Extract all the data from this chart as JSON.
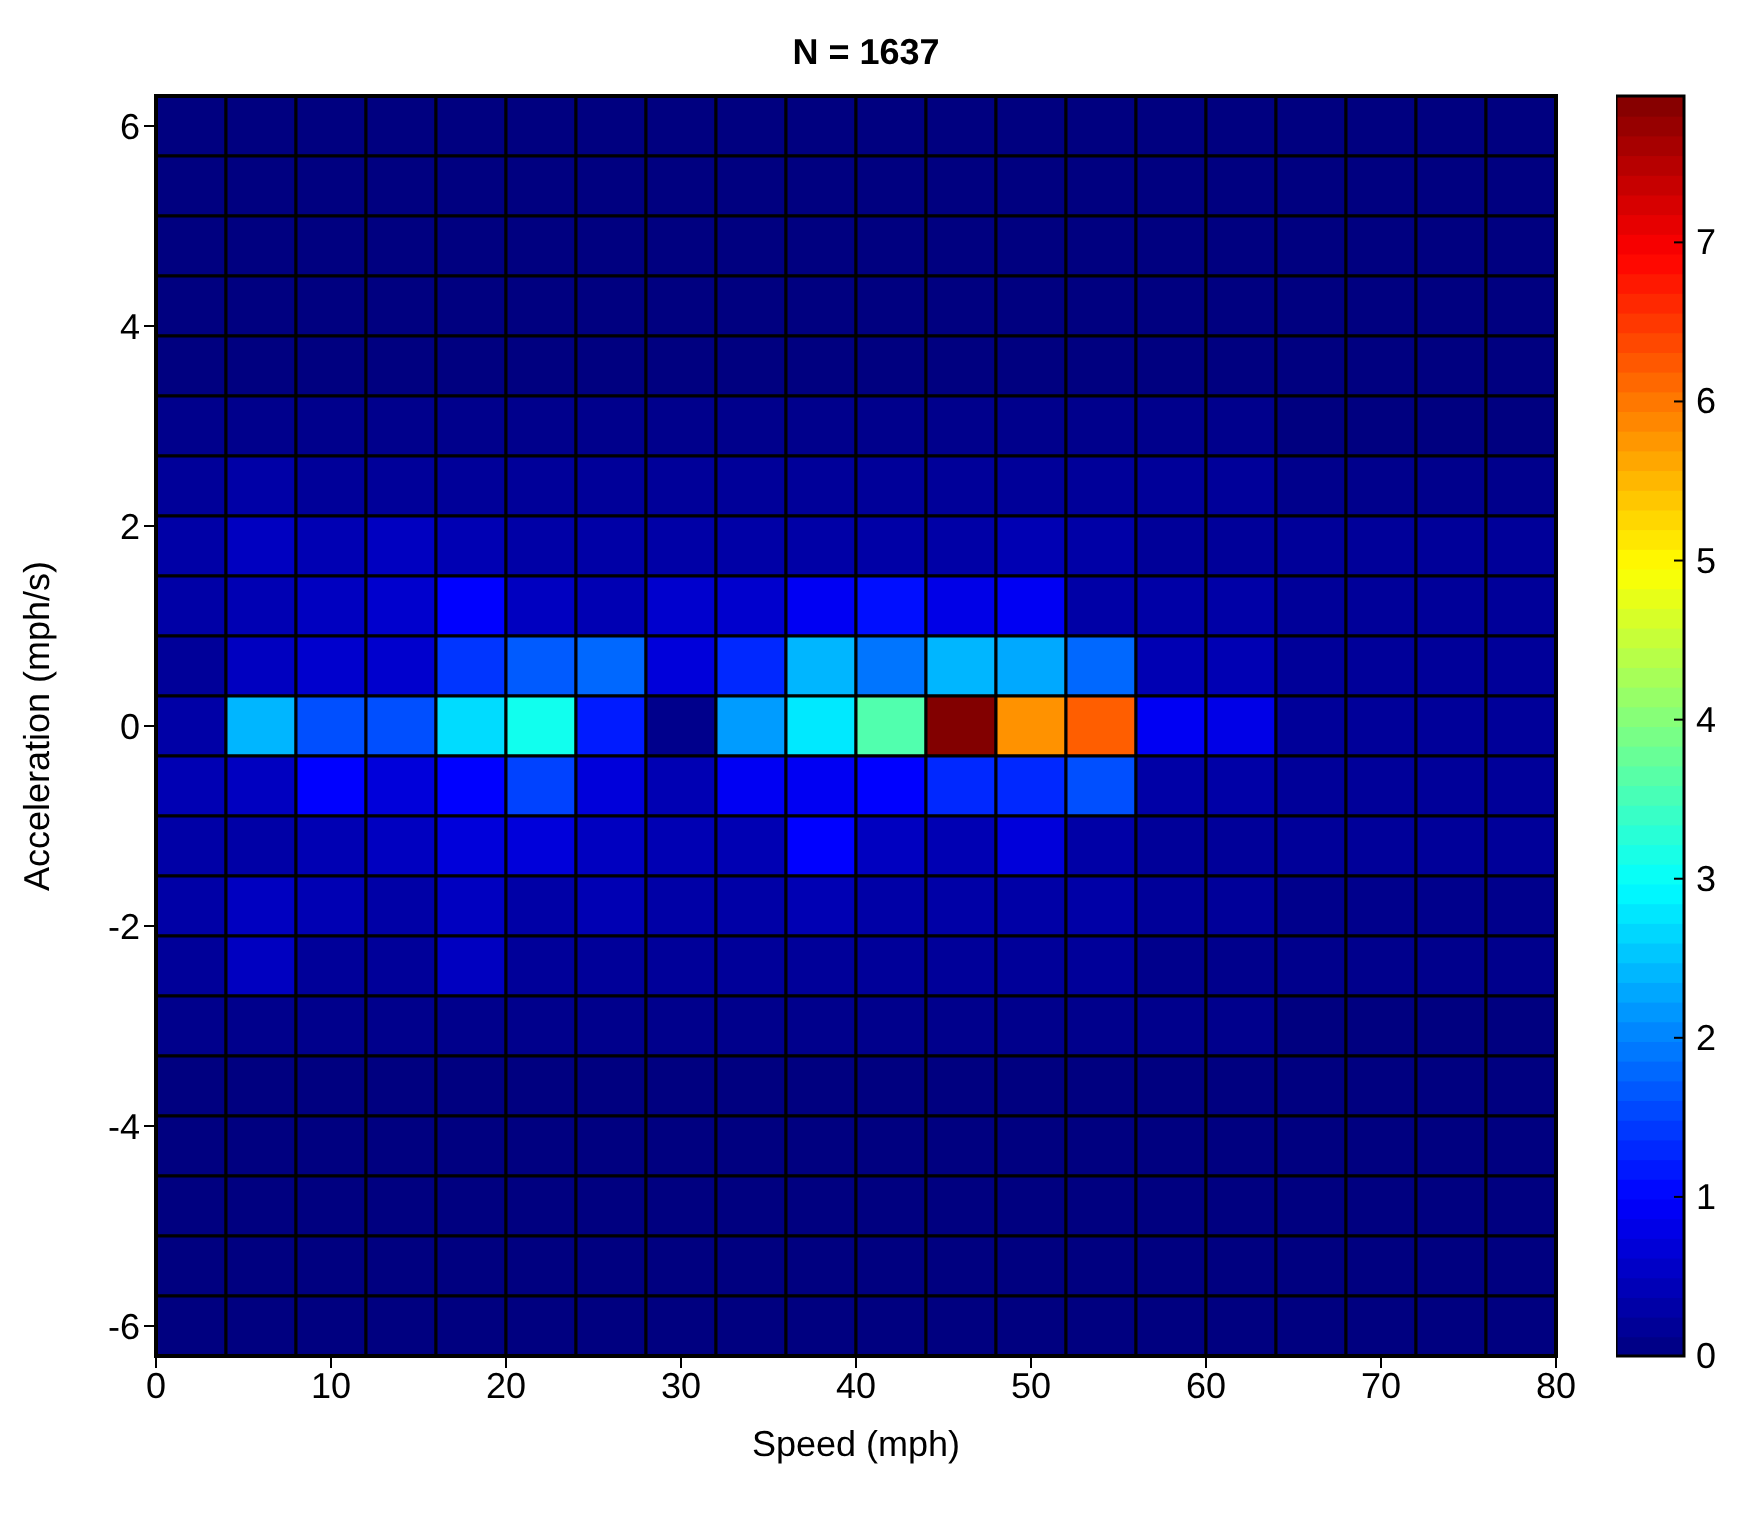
{
  "chart_data": {
    "type": "heatmap",
    "title": "N = 1637",
    "xlabel": "Speed (mph)",
    "ylabel": "Acceleration (mph/s)",
    "xlim": [
      0,
      80
    ],
    "xticks": [
      0,
      10,
      20,
      30,
      40,
      50,
      60,
      70,
      80
    ],
    "ylim": [
      -6.3,
      6.3
    ],
    "yticks": [
      -6,
      -4,
      -2,
      0,
      2,
      4,
      6
    ],
    "clim": [
      0,
      7.92
    ],
    "cticks": [
      0,
      1,
      2,
      3,
      4,
      5,
      6,
      7
    ],
    "cells": [
      [
        0,
        0,
        0,
        0,
        0,
        0,
        0,
        0,
        0,
        0,
        0,
        0,
        0,
        0,
        0,
        0,
        0,
        0,
        0,
        0
      ],
      [
        0,
        0,
        0,
        0,
        0,
        0,
        0,
        0,
        0,
        0,
        0,
        0,
        0,
        0,
        0,
        0,
        0,
        0,
        0,
        0
      ],
      [
        0,
        0,
        0,
        0,
        0,
        0,
        0,
        0,
        0,
        0,
        0,
        0,
        0,
        0,
        0,
        0,
        0,
        0,
        0,
        0
      ],
      [
        0,
        0,
        0,
        0,
        0,
        0,
        0,
        0,
        0,
        0,
        0,
        0,
        0,
        0,
        0,
        0,
        0,
        0,
        0,
        0
      ],
      [
        0,
        0,
        0,
        0,
        0,
        0,
        0,
        0,
        0,
        0,
        0,
        0,
        0,
        0,
        0,
        0,
        0,
        0,
        0,
        0
      ],
      [
        0.1,
        0.1,
        0.1,
        0.1,
        0.1,
        0.1,
        0.1,
        0.1,
        0.1,
        0.1,
        0.1,
        0.1,
        0.1,
        0.1,
        0.1,
        0.1,
        0,
        0,
        0,
        0
      ],
      [
        0.2,
        0.3,
        0.2,
        0.2,
        0.2,
        0.2,
        0.2,
        0.2,
        0.2,
        0.2,
        0.2,
        0.2,
        0.2,
        0.2,
        0.2,
        0.2,
        0.1,
        0.1,
        0.1,
        0.1
      ],
      [
        0.3,
        0.5,
        0.4,
        0.5,
        0.4,
        0.3,
        0.3,
        0.3,
        0.3,
        0.3,
        0.3,
        0.3,
        0.4,
        0.3,
        0.2,
        0.2,
        0.2,
        0.2,
        0.2,
        0.2
      ],
      [
        0.3,
        0.4,
        0.5,
        0.6,
        1.0,
        0.5,
        0.4,
        0.6,
        0.6,
        0.9,
        1.1,
        0.8,
        0.9,
        0.3,
        0.3,
        0.3,
        0.2,
        0.2,
        0.2,
        0.2
      ],
      [
        0.2,
        0.5,
        0.6,
        0.6,
        1.4,
        1.7,
        1.8,
        0.7,
        1.3,
        2.4,
        1.9,
        2.4,
        2.3,
        1.8,
        0.4,
        0.4,
        0.2,
        0.2,
        0.2,
        0.2
      ],
      [
        0.3,
        2.4,
        1.6,
        1.6,
        2.7,
        3.1,
        1.2,
        0.1,
        2.2,
        2.8,
        3.6,
        7.9,
        5.8,
        6.2,
        0.9,
        0.8,
        0.2,
        0.2,
        0.2,
        0.2
      ],
      [
        0.4,
        0.5,
        1.0,
        0.7,
        1.0,
        1.5,
        0.7,
        0.4,
        0.9,
        0.9,
        1.0,
        1.3,
        1.3,
        1.6,
        0.3,
        0.3,
        0.2,
        0.2,
        0.2,
        0.2
      ],
      [
        0.3,
        0.3,
        0.4,
        0.5,
        0.7,
        0.7,
        0.5,
        0.4,
        0.4,
        1.0,
        0.5,
        0.4,
        0.7,
        0.3,
        0.2,
        0.2,
        0.2,
        0.2,
        0.2,
        0.2
      ],
      [
        0.3,
        0.5,
        0.4,
        0.3,
        0.5,
        0.3,
        0.4,
        0.3,
        0.3,
        0.4,
        0.3,
        0.3,
        0.3,
        0.3,
        0.2,
        0.2,
        0.1,
        0.1,
        0.1,
        0.1
      ],
      [
        0.2,
        0.5,
        0.2,
        0.2,
        0.5,
        0.2,
        0.2,
        0.2,
        0.2,
        0.2,
        0.2,
        0.2,
        0.2,
        0.2,
        0.1,
        0.1,
        0.1,
        0.1,
        0.1,
        0.1
      ],
      [
        0.1,
        0.1,
        0.1,
        0.1,
        0.1,
        0.1,
        0.1,
        0.1,
        0.1,
        0.1,
        0.1,
        0.1,
        0.1,
        0.1,
        0.1,
        0.1,
        0,
        0,
        0,
        0
      ],
      [
        0,
        0,
        0,
        0,
        0,
        0,
        0,
        0,
        0,
        0,
        0,
        0,
        0,
        0,
        0,
        0,
        0,
        0,
        0,
        0
      ],
      [
        0,
        0,
        0,
        0,
        0,
        0,
        0,
        0,
        0,
        0,
        0,
        0,
        0,
        0,
        0,
        0,
        0,
        0,
        0,
        0
      ],
      [
        0,
        0,
        0,
        0,
        0,
        0,
        0,
        0,
        0,
        0,
        0,
        0,
        0,
        0,
        0,
        0,
        0,
        0,
        0,
        0
      ],
      [
        0,
        0,
        0,
        0,
        0,
        0,
        0,
        0,
        0,
        0,
        0,
        0,
        0,
        0,
        0,
        0,
        0,
        0,
        0,
        0
      ],
      [
        0,
        0,
        0,
        0,
        0,
        0,
        0,
        0,
        0,
        0,
        0,
        0,
        0,
        0,
        0,
        0,
        0,
        0,
        0,
        0
      ]
    ]
  }
}
